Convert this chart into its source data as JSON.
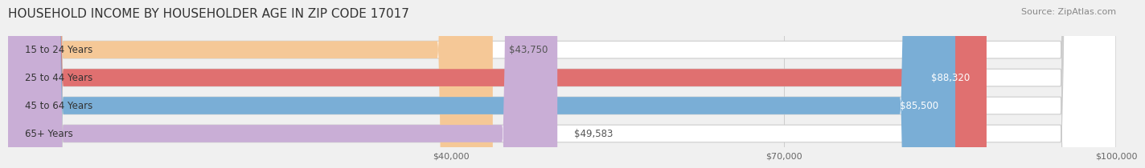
{
  "title": "HOUSEHOLD INCOME BY HOUSEHOLDER AGE IN ZIP CODE 17017",
  "source": "Source: ZipAtlas.com",
  "categories": [
    "15 to 24 Years",
    "25 to 44 Years",
    "45 to 64 Years",
    "65+ Years"
  ],
  "values": [
    43750,
    88320,
    85500,
    49583
  ],
  "bar_colors": [
    "#f5c897",
    "#e07070",
    "#7aaed6",
    "#c9aed6"
  ],
  "bar_edge_colors": [
    "#e8a860",
    "#c05050",
    "#5090c0",
    "#a888c0"
  ],
  "label_colors": [
    "#555555",
    "#ffffff",
    "#ffffff",
    "#555555"
  ],
  "value_labels": [
    "$43,750",
    "$88,320",
    "$85,500",
    "$49,583"
  ],
  "xmin": 0,
  "xmax": 100000,
  "xticks": [
    40000,
    70000,
    100000
  ],
  "xtick_labels": [
    "$40,000",
    "$70,000",
    "$100,000"
  ],
  "background_color": "#f0f0f0",
  "bar_bg_color": "#e8e8e8",
  "title_fontsize": 11,
  "source_fontsize": 8,
  "label_fontsize": 8.5,
  "tick_fontsize": 8,
  "bar_height": 0.62,
  "fig_width": 14.06,
  "fig_height": 2.33
}
